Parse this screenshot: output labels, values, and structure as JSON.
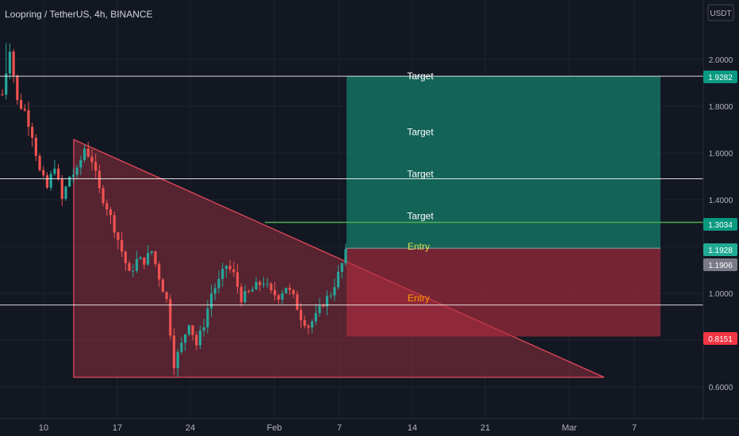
{
  "header": {
    "title": "Loopring / TetherUS, 4h, BINANCE"
  },
  "price_axis": {
    "unit": "USDT",
    "ticks": [
      "2.0000",
      "1.8000",
      "1.6000",
      "1.4000",
      "1.2000",
      "1.0000",
      "0.8000",
      "0.6000"
    ],
    "tick_values": [
      2.0,
      1.8,
      1.6,
      1.4,
      1.2,
      1.0,
      0.8,
      0.6
    ],
    "badges": [
      {
        "label": "1.9282",
        "value": 1.9282,
        "color": "#089981"
      },
      {
        "label": "1.3034",
        "value": 1.3034,
        "color": "#089981"
      },
      {
        "label": "1.1928",
        "value": 1.1928,
        "color": "#22ab94"
      },
      {
        "label": "1.1906",
        "value": 1.1906,
        "color": "#787b86"
      },
      {
        "label": "0.8151",
        "value": 0.8151,
        "color": "#f23645"
      }
    ]
  },
  "time_axis": {
    "labels": [
      "10",
      "17",
      "24",
      "Feb",
      "7",
      "14",
      "21",
      "Mar",
      "7"
    ]
  },
  "annotations": {
    "targets": [
      {
        "text": "Target",
        "value": 1.9282
      },
      {
        "text": "Target",
        "value": 1.69
      },
      {
        "text": "Target",
        "value": 1.51
      },
      {
        "text": "Target",
        "value": 1.33
      }
    ],
    "entries": [
      {
        "text": "Entry",
        "value": 1.2,
        "color": "#d4e157"
      },
      {
        "text": "Entry",
        "value": 0.98,
        "color": "#ff9800"
      }
    ]
  },
  "levels": [
    1.9282,
    1.49,
    0.95
  ],
  "green_level": 1.3034,
  "colors": {
    "background": "#131722",
    "grid": "#1f2330",
    "up_candle": "#26a69a",
    "down_candle": "#ef5350",
    "profit_zone": "#136a5c",
    "loss_zone": "#7a2633",
    "triangle": "#b33444",
    "level_line": "#ffffff",
    "green_line": "#4caf50"
  },
  "chart_data": {
    "type": "candlestick",
    "symbol": "LRC/USDT",
    "interval": "4h",
    "ylim": [
      0.57,
      2.2
    ],
    "trend_path": [
      [
        0,
        1.85
      ],
      [
        2,
        2.05
      ],
      [
        4,
        1.82
      ],
      [
        6,
        1.78
      ],
      [
        8,
        1.68
      ],
      [
        10,
        1.52
      ],
      [
        12,
        1.45
      ],
      [
        14,
        1.55
      ],
      [
        16,
        1.4
      ],
      [
        18,
        1.5
      ],
      [
        20,
        1.52
      ],
      [
        22,
        1.62
      ],
      [
        24,
        1.57
      ],
      [
        26,
        1.44
      ],
      [
        28,
        1.37
      ],
      [
        30,
        1.28
      ],
      [
        32,
        1.18
      ],
      [
        34,
        1.08
      ],
      [
        36,
        1.14
      ],
      [
        38,
        1.14
      ],
      [
        40,
        1.18
      ],
      [
        42,
        1.07
      ],
      [
        44,
        0.97
      ],
      [
        46,
        0.7
      ],
      [
        48,
        0.78
      ],
      [
        50,
        0.88
      ],
      [
        52,
        0.78
      ],
      [
        54,
        0.87
      ],
      [
        56,
        1.0
      ],
      [
        58,
        1.05
      ],
      [
        60,
        1.12
      ],
      [
        62,
        1.08
      ],
      [
        64,
        0.98
      ],
      [
        66,
        1.0
      ],
      [
        68,
        1.03
      ],
      [
        70,
        1.05
      ],
      [
        72,
        1.0
      ],
      [
        74,
        0.99
      ],
      [
        76,
        1.03
      ],
      [
        78,
        0.98
      ],
      [
        80,
        0.9
      ],
      [
        82,
        0.86
      ],
      [
        84,
        0.9
      ],
      [
        86,
        0.96
      ],
      [
        88,
        1.0
      ],
      [
        90,
        1.08
      ],
      [
        92,
        1.17
      ],
      [
        93,
        1.2
      ]
    ],
    "candle_count": 93
  }
}
